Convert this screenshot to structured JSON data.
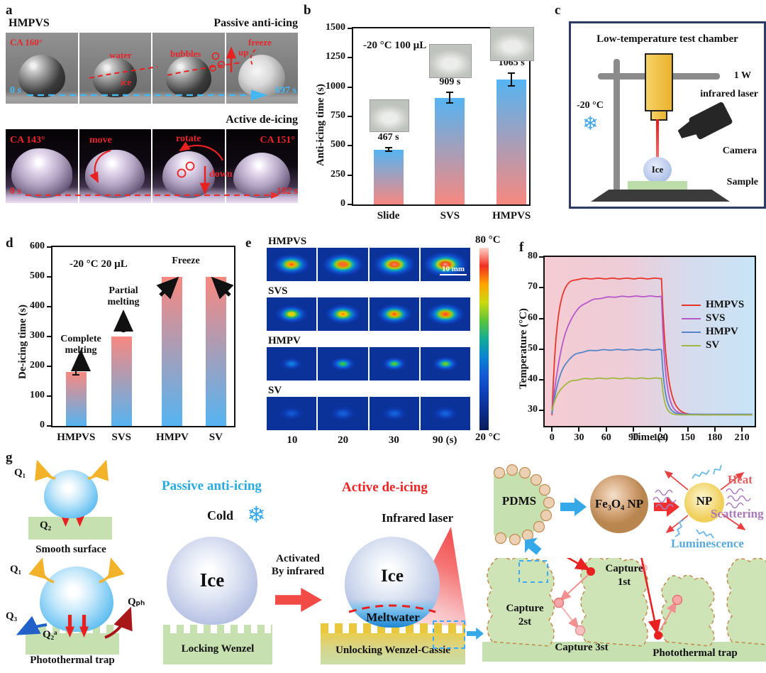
{
  "panel_a": {
    "label": "a",
    "sample_label": "HMPVS",
    "passive_title": "Passive anti-icing",
    "active_title": "Active de-icing",
    "row1": {
      "ca": "CA 160°",
      "water": "water",
      "ice": "ice",
      "bubbles": "bubbles",
      "up": "up",
      "freeze": "freeze",
      "t0": "0 s",
      "t1": "697 s"
    },
    "row2": {
      "ca0": "CA 143°",
      "move": "move",
      "rotate": "rotate",
      "down": "down",
      "ca1": "CA 151°",
      "t0": "0 s",
      "t1": "182 s"
    }
  },
  "panel_c": {
    "label": "c",
    "title": "Low-temperature test chamber",
    "power": "1 W",
    "laser_label": "infrared laser",
    "temp": "-20 °C",
    "snowflake_icon": "❄",
    "camera_label": "Camera",
    "ice_label": "Ice",
    "sample_label": "Sample"
  },
  "panel_g": {
    "label": "g",
    "q1": "Q₁",
    "q2": "Q₂",
    "q3": "Q₃",
    "qph": "Qₚₕ",
    "q2a": "Q₂ᵃ",
    "smooth_label": "Smooth surface",
    "trap_label": "Photothermal trap",
    "passive_title": "Passive anti-icing",
    "cold": "Cold",
    "snowflake_icon": "❄",
    "ice1": "Ice",
    "locking_label": "Locking Wenzel",
    "activated_line1": "Activated",
    "activated_line2": "By infrared",
    "active_title": "Active de-icing",
    "ir_label": "Infrared laser",
    "ice2": "Ice",
    "meltwater": "Meltwater",
    "unlocking_label": "Unlocking Wenzel-Cassie",
    "pdms": "PDMS",
    "fe3o4": "Fe₃O₄ NP",
    "np": "NP",
    "heat": "Heat",
    "scattering": "Scattering",
    "luminescence": "Luminescence",
    "capture1_l1": "Capture",
    "capture1_l2": "1st",
    "capture2_l1": "Capture",
    "capture2_l2": "2st",
    "capture3": "Capture 3st",
    "trap2_label": "Photothermal trap",
    "accent_passive": "#29abe2",
    "accent_active": "#ee2424"
  },
  "chart_data": [
    {
      "id": "b",
      "panel_label": "b",
      "type": "bar",
      "condition": "-20 °C 100 µL",
      "categories": [
        "Slide",
        "SVS",
        "HMPVS"
      ],
      "values": [
        467,
        909,
        1065
      ],
      "errors": [
        15,
        45,
        55
      ],
      "value_labels": [
        "467 s",
        "909 s",
        "1065 s"
      ],
      "ylabel": "Anti-icing time (s)",
      "ylim": [
        0,
        1500
      ],
      "yticks": [
        0,
        250,
        500,
        750,
        1000,
        1250,
        1500
      ],
      "bar_color_top": "#55b4f2",
      "bar_color_bottom": "#f88880",
      "bar_centers": [
        0.2,
        0.55,
        0.9
      ]
    },
    {
      "id": "d",
      "panel_label": "d",
      "type": "bar",
      "condition": "-20 °C  20 µL",
      "categories": [
        "HMPVS",
        "SVS",
        "HMPV",
        "SV"
      ],
      "values": [
        182,
        300,
        500,
        500
      ],
      "errors": [
        10,
        0,
        0,
        0
      ],
      "value_labels": [],
      "ylabel": "De-icing time (s)",
      "ylim": [
        0,
        600
      ],
      "yticks": [
        0,
        100,
        200,
        300,
        400,
        500,
        600
      ],
      "bar_color_top": "#f88880",
      "bar_color_bottom": "#55b4f2",
      "bar_centers": [
        0.13,
        0.38,
        0.66,
        0.9
      ],
      "annotations": [
        {
          "lines": [
            "Complete",
            "melting"
          ],
          "x": 40,
          "y": 122,
          "arrow": [
            40,
            174,
            40,
            150
          ]
        },
        {
          "lines": [
            "Partial",
            "melting"
          ],
          "x": 100,
          "y": 54,
          "arrow": [
            100,
            120,
            100,
            94
          ]
        },
        {
          "lines": [
            "Freeze"
          ],
          "x": 188,
          "y": 12,
          "arrow": [
            152,
            68,
            174,
            46
          ]
        },
        {
          "lines": [],
          "x": 0,
          "y": 0,
          "arrow": [
            250,
            68,
            228,
            46
          ]
        }
      ]
    },
    {
      "id": "e",
      "panel_label": "e",
      "type": "heatmap",
      "rows": [
        {
          "name": "HMPVS",
          "peaks": [
            0.88,
            0.93,
            0.95,
            0.97
          ],
          "size": [
            30,
            33,
            34,
            36
          ]
        },
        {
          "name": "SVS",
          "peaks": [
            0.78,
            0.84,
            0.88,
            0.91
          ],
          "size": [
            26,
            28,
            29,
            31
          ]
        },
        {
          "name": "HMPV",
          "peaks": [
            0.42,
            0.6,
            0.63,
            0.65
          ],
          "size": [
            18,
            20,
            20,
            21
          ]
        },
        {
          "name": "SV",
          "peaks": [
            0.3,
            0.33,
            0.34,
            0.34
          ],
          "size": [
            20,
            21,
            21,
            21
          ]
        }
      ],
      "times": [
        "10",
        "20",
        "30",
        "90 (s)"
      ],
      "scale_bar": "10 mm",
      "colorbar_top": "80 °C",
      "colorbar_bottom": "20 °C",
      "value_range_c": [
        20,
        80
      ]
    },
    {
      "id": "f",
      "panel_label": "f",
      "type": "line",
      "xlabel": "Time (s)",
      "ylabel": "Temperature (°C)",
      "xlim": [
        -8,
        224
      ],
      "ylim": [
        25,
        80
      ],
      "xticks": [
        0,
        30,
        60,
        90,
        120,
        150,
        180,
        210
      ],
      "yticks": [
        30,
        40,
        50,
        60,
        70,
        80
      ],
      "laser_off_s": 120,
      "series": [
        {
          "name": "HMPVS",
          "color": "#e8352b",
          "start": 28.5,
          "plateau": 73.0,
          "rise_tau": 5.5,
          "fall_tau": 6.0,
          "end": 28.6
        },
        {
          "name": "SVS",
          "color": "#b558c8",
          "start": 29.0,
          "plateau": 67.2,
          "rise_tau": 13,
          "fall_tau": 4.5,
          "end": 28.8
        },
        {
          "name": "HMPV",
          "color": "#5585c8",
          "start": 29.0,
          "plateau": 49.8,
          "rise_tau": 10,
          "fall_tau": 4.0,
          "end": 28.8
        },
        {
          "name": "SV",
          "color": "#9fb740",
          "start": 30.0,
          "plateau": 40.5,
          "rise_tau": 9,
          "fall_tau": 3.5,
          "end": 28.6
        }
      ]
    }
  ]
}
